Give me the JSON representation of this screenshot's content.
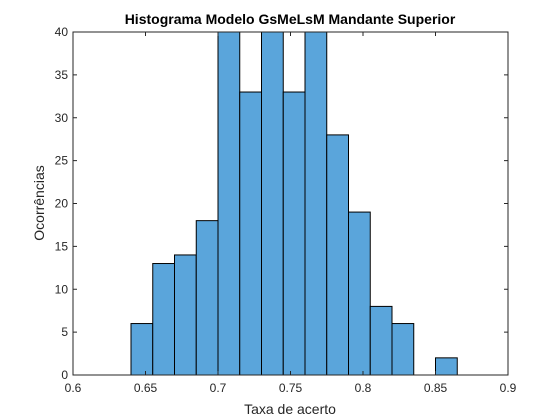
{
  "chart_data": {
    "type": "bar",
    "title": "Histograma Modelo GsMeLsM Mandante Superior",
    "xlabel": "Taxa de acerto",
    "ylabel": "Ocorrências",
    "xlim": [
      0.6,
      0.9
    ],
    "ylim": [
      0,
      40
    ],
    "x_ticks": [
      "0.6",
      "0.65",
      "0.7",
      "0.75",
      "0.8",
      "0.85",
      "0.9"
    ],
    "y_ticks": [
      "0",
      "5",
      "10",
      "15",
      "20",
      "25",
      "30",
      "35",
      "40"
    ],
    "bin_edges": [
      0.64,
      0.655,
      0.67,
      0.685,
      0.7,
      0.715,
      0.73,
      0.745,
      0.76,
      0.775,
      0.79,
      0.805,
      0.82,
      0.835,
      0.85,
      0.865
    ],
    "values": [
      6,
      13,
      14,
      18,
      41,
      33,
      41,
      33,
      41,
      28,
      19,
      8,
      6,
      0,
      2
    ],
    "bar_color": "#5aa5db",
    "edge_color": "#000000",
    "grid": false
  }
}
